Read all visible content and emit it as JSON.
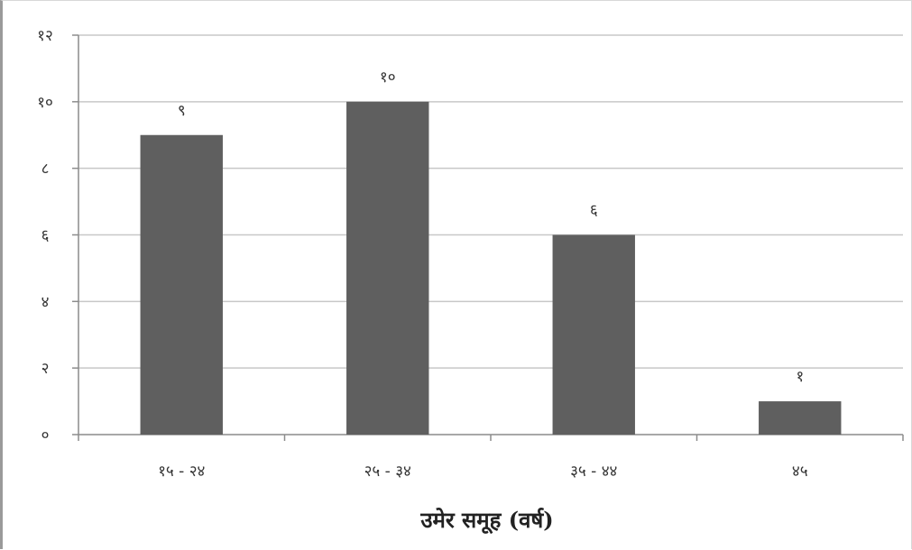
{
  "chart_data": {
    "type": "bar",
    "categories": [
      "१५ - २४",
      "२५ - ३४",
      "३५ - ४४",
      "४५"
    ],
    "values": [
      9,
      10,
      6,
      1
    ],
    "data_labels": [
      "९",
      "१०",
      "६",
      "१"
    ],
    "title": "",
    "xlabel": "उमेर समूह (वर्ष)",
    "ylabel": "",
    "ylim": [
      0,
      12
    ],
    "yticks": [
      0,
      2,
      4,
      6,
      8,
      10,
      12
    ],
    "ytick_labels": [
      "०",
      "२",
      "४",
      "६",
      "८",
      "१०",
      "१२"
    ],
    "grid": true,
    "legend": "none",
    "bar_color": "#5f5f5f",
    "grid_color": "#c8c8c8",
    "axis_color": "#8c8c8c"
  }
}
